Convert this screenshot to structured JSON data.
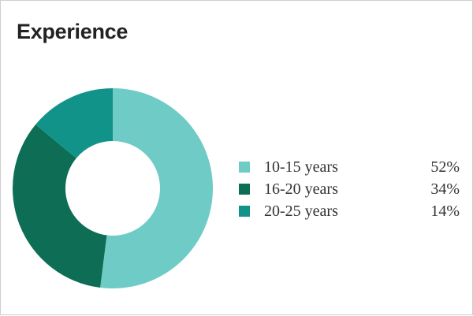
{
  "title": "Experience",
  "colors": {
    "slice_1": "#6ecbc6",
    "slice_2": "#0d6e55",
    "slice_3": "#12938a"
  },
  "chart_data": {
    "type": "pie",
    "donut": true,
    "categories": [
      "10-15 years",
      "16-20 years",
      "20-25 years"
    ],
    "values": [
      52,
      34,
      14
    ],
    "value_labels": [
      "52%",
      "34%",
      "14%"
    ],
    "colors": [
      "#6ecbc6",
      "#0d6e55",
      "#12938a"
    ],
    "legend_position": "right"
  },
  "legend": [
    {
      "label": "10-15 years",
      "value": "52%"
    },
    {
      "label": "16-20 years",
      "value": "34%"
    },
    {
      "label": "20-25 years",
      "value": "14%"
    }
  ]
}
